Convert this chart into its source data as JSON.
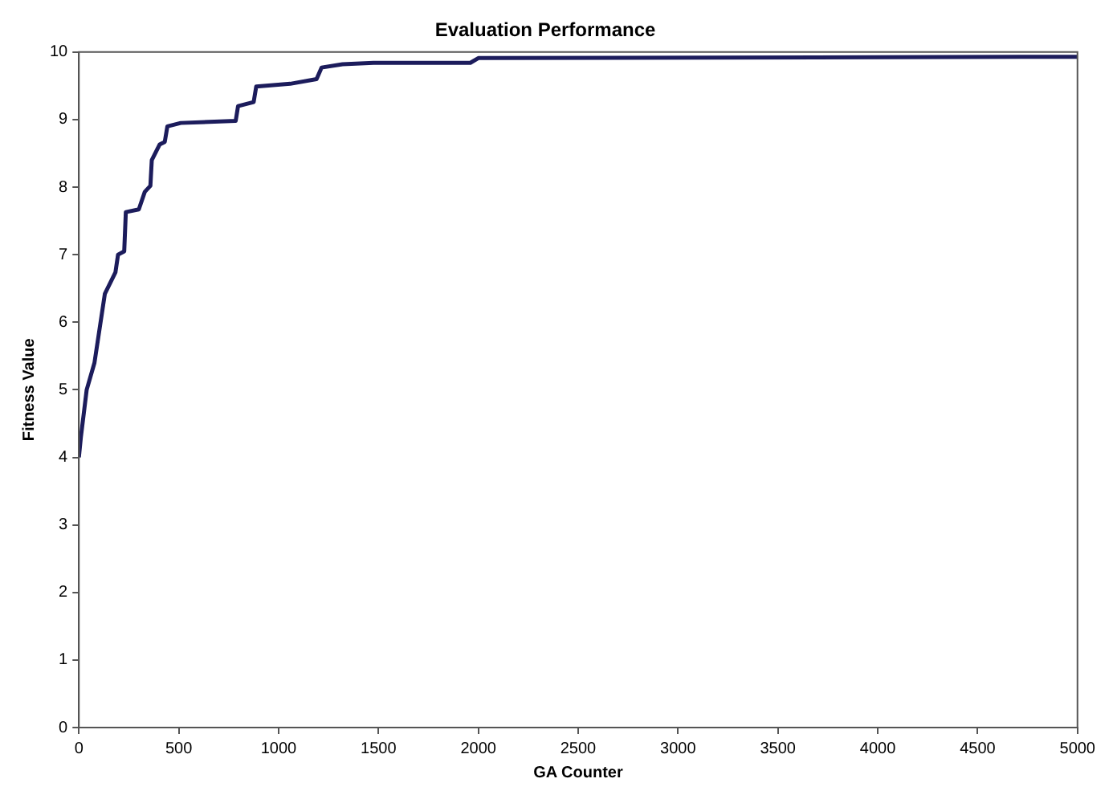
{
  "chart_data": {
    "type": "line",
    "title": "Evaluation Performance",
    "xlabel": "GA Counter",
    "ylabel": "Fitness Value",
    "x": [
      0,
      10,
      39,
      78,
      130,
      183,
      196,
      227,
      235,
      300,
      330,
      358,
      365,
      404,
      430,
      443,
      510,
      785,
      797,
      875,
      888,
      1058,
      1190,
      1215,
      1320,
      1475,
      1960,
      2000,
      5000
    ],
    "series": [
      {
        "color": "#1c1c5c",
        "values": [
          4.0,
          4.3,
          5.0,
          5.4,
          6.42,
          6.74,
          7.0,
          7.05,
          7.63,
          7.67,
          7.93,
          8.02,
          8.4,
          8.63,
          8.67,
          8.9,
          8.95,
          8.98,
          9.2,
          9.26,
          9.49,
          9.53,
          9.6,
          9.77,
          9.82,
          9.84,
          9.84,
          9.91,
          9.93
        ]
      }
    ],
    "xlim": [
      0,
      5000
    ],
    "xticks": [
      0,
      500,
      1000,
      1500,
      2000,
      2500,
      3000,
      3500,
      4000,
      4500,
      5000
    ],
    "ylim": [
      0,
      10
    ],
    "yticks": [
      0,
      1,
      2,
      3,
      4,
      5,
      6,
      7,
      8,
      9,
      10
    ],
    "grid": false,
    "legend": false,
    "marker": "none",
    "line_style": "solid"
  }
}
